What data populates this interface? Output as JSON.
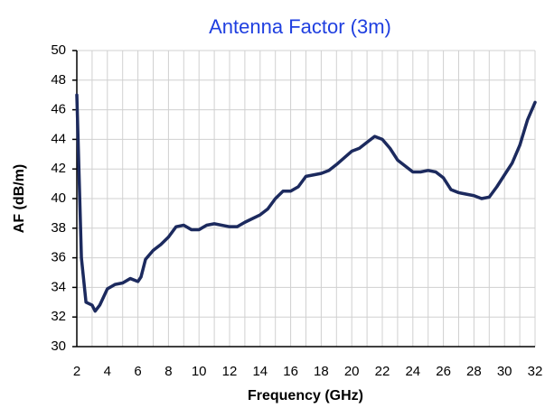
{
  "chart_data": {
    "type": "line",
    "title": "Antenna Factor (3m)",
    "x_label": "Frequency  (GHz)",
    "y_label": "AF  (dB/m)",
    "x": [
      2,
      2.3,
      2.6,
      3,
      3.2,
      3.5,
      4,
      4.5,
      5,
      5.5,
      6,
      6.2,
      6.5,
      7,
      7.5,
      8,
      8.5,
      9,
      9.5,
      10,
      10.5,
      11,
      12,
      12.5,
      13,
      14,
      14.5,
      15,
      15.5,
      16,
      16.5,
      17,
      18,
      18.5,
      19,
      20,
      20.5,
      21,
      21.5,
      22,
      22.5,
      23,
      24,
      24.5,
      25,
      25.5,
      26,
      26.5,
      27,
      28,
      28.5,
      29,
      29.5,
      30,
      30.5,
      31,
      31.5,
      32
    ],
    "series": [
      {
        "name": "AF",
        "color": "#1c2a5e",
        "values": [
          47,
          36,
          33,
          32.8,
          32.4,
          32.8,
          33.9,
          34.2,
          34.3,
          34.6,
          34.4,
          34.7,
          35.9,
          36.5,
          36.9,
          37.4,
          38.1,
          38.2,
          37.9,
          37.9,
          38.2,
          38.3,
          38.1,
          38.1,
          38.4,
          38.9,
          39.3,
          40.0,
          40.5,
          40.5,
          40.8,
          41.5,
          41.7,
          41.9,
          42.3,
          43.2,
          43.4,
          43.8,
          44.2,
          44.0,
          43.4,
          42.6,
          41.8,
          41.8,
          41.9,
          41.8,
          41.4,
          40.6,
          40.4,
          40.2,
          40.0,
          40.1,
          40.8,
          41.6,
          42.4,
          43.6,
          45.3,
          46.5
        ]
      }
    ],
    "xlim": [
      2,
      32
    ],
    "xticks": [
      2,
      4,
      6,
      8,
      10,
      12,
      14,
      16,
      18,
      20,
      22,
      24,
      26,
      28,
      30,
      32
    ],
    "xminorticks": [
      3,
      5,
      7,
      9,
      11,
      13,
      15,
      17,
      19,
      21,
      23,
      25,
      27,
      29,
      31
    ],
    "ylim": [
      30,
      50
    ],
    "yticks": [
      30,
      32,
      34,
      36,
      38,
      40,
      42,
      44,
      46,
      48,
      50
    ],
    "grid": true,
    "title_color": "#1f3fe0"
  }
}
